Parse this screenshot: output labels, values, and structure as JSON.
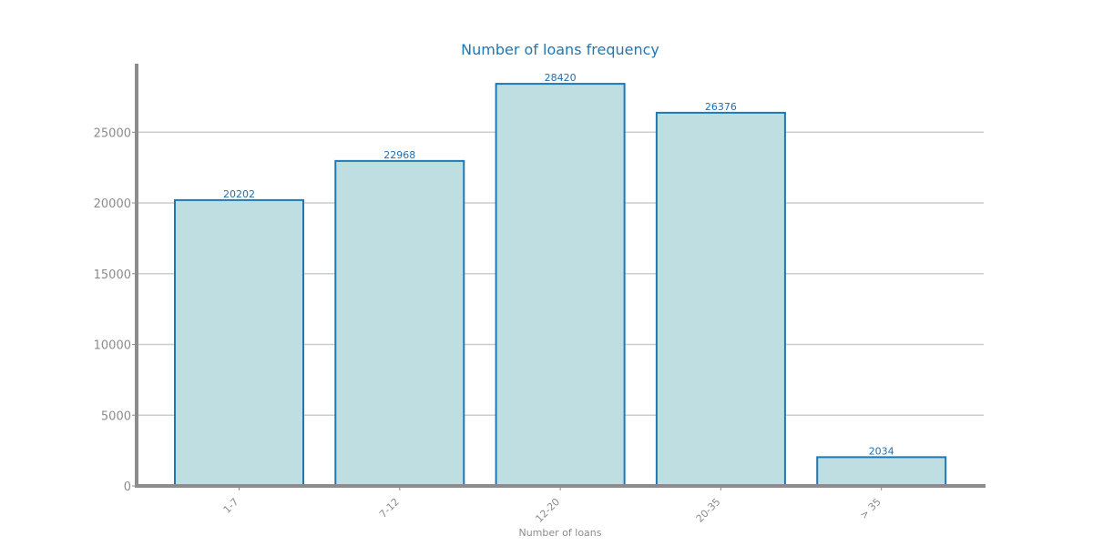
{
  "chart_data": {
    "type": "bar",
    "title": "Number of loans frequency",
    "xlabel": "Number of loans",
    "ylabel": "",
    "categories": [
      "1-7",
      "7-12",
      "12-20",
      "20-35",
      "> 35"
    ],
    "values": [
      20202,
      22968,
      28420,
      26376,
      2034
    ],
    "data_labels": [
      "20202",
      "22968",
      "28420",
      "26376",
      "2034"
    ],
    "yticks": [
      0,
      5000,
      10000,
      15000,
      20000,
      25000
    ],
    "ylim": [
      0,
      29841
    ],
    "grid": true,
    "legend": "none",
    "colors": {
      "bar_fill": "#bfdee2",
      "bar_edge": "#1f77b4",
      "axis": "#8c8c8c",
      "grid": "#cccccc",
      "title": "#1f77b4",
      "data_label": "#1f6fb0",
      "tick_text": "#8c8c8c"
    }
  }
}
